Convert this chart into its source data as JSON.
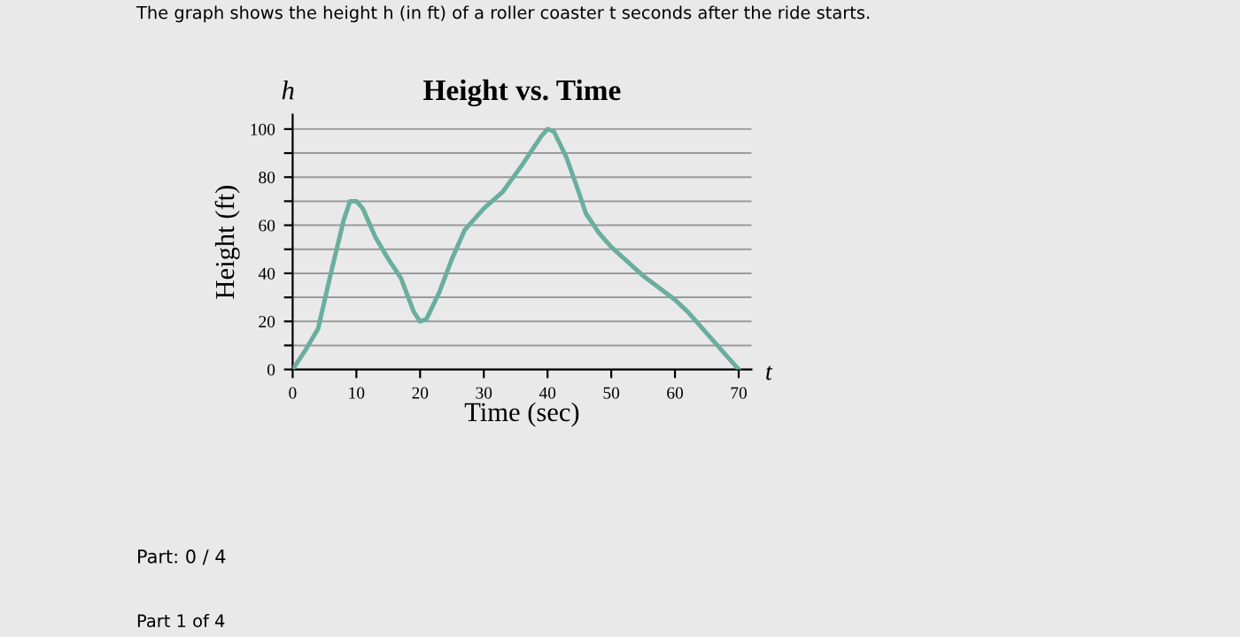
{
  "chart_data": {
    "type": "line",
    "title": "Height vs. Time",
    "xlabel": "Time (sec)",
    "ylabel": "Height (ft)",
    "annotations": [
      "The graph shows the height h (in ft) of a roller coaster t seconds after the ride starts.",
      "h",
      "t",
      "Part: 0 / 4",
      "Part 1 of 4"
    ],
    "series": [
      {
        "color": "#6aaea0",
        "x": [
          0,
          2,
          4,
          6,
          8,
          9,
          10,
          11,
          13,
          15,
          17,
          19,
          20,
          21,
          23,
          25,
          27,
          30,
          33,
          36,
          39,
          40,
          41,
          43,
          45,
          46,
          48,
          50,
          55,
          60,
          62,
          65,
          68,
          70
        ],
        "values": [
          0,
          8,
          17,
          40,
          62,
          70,
          70,
          67,
          55,
          46,
          38,
          24,
          20,
          21,
          32,
          46,
          58,
          67,
          74,
          85,
          97,
          100,
          99,
          88,
          73,
          65,
          57,
          51,
          39,
          29,
          24,
          15,
          6,
          0
        ]
      }
    ],
    "xlim": [
      0,
      72
    ],
    "ylim": [
      0,
      106
    ],
    "xticks": [
      0,
      10,
      20,
      30,
      40,
      50,
      60,
      70
    ],
    "yticks": [
      0,
      {
        "value": 10,
        "label": null
      },
      20,
      {
        "value": 30,
        "label": null
      },
      40,
      {
        "value": 50,
        "label": null
      },
      60,
      {
        "value": 70,
        "label": null
      },
      80,
      {
        "value": 90,
        "label": null
      },
      100
    ],
    "grid": "y",
    "legend": false,
    "marker": "none",
    "line_style": "solid"
  }
}
